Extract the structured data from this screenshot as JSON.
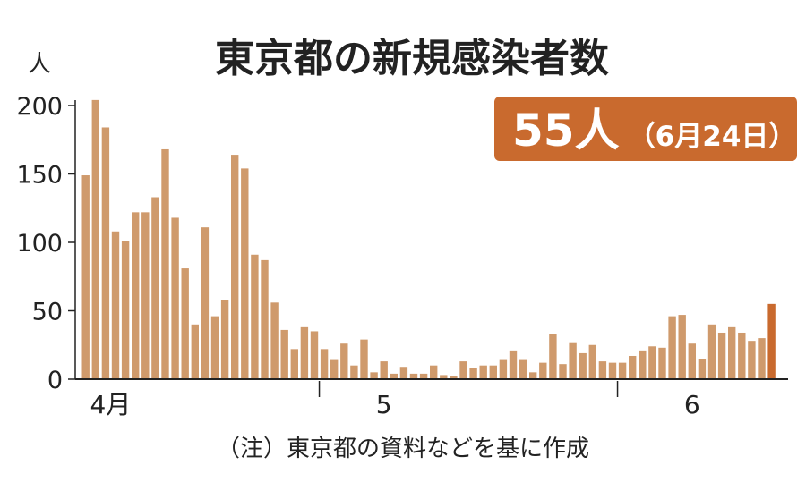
{
  "chart_data": {
    "type": "bar",
    "title": "東京都の新規感染者数",
    "unit_label": "人",
    "ylim": [
      0,
      200
    ],
    "yticks": [
      0,
      50,
      100,
      150,
      200
    ],
    "x_labels": [
      {
        "label": "4月",
        "index": 2.5
      },
      {
        "label": "5",
        "index": 30
      },
      {
        "label": "6",
        "index": 61
      }
    ],
    "month_dividers": [
      24,
      54
    ],
    "values": [
      149,
      204,
      184,
      108,
      101,
      122,
      122,
      133,
      168,
      118,
      81,
      40,
      111,
      46,
      58,
      164,
      154,
      91,
      87,
      56,
      36,
      22,
      38,
      35,
      22,
      14,
      26,
      10,
      29,
      5,
      13,
      4,
      9,
      4,
      4,
      10,
      3,
      2,
      13,
      8,
      10,
      10,
      14,
      21,
      14,
      5,
      12,
      33,
      11,
      27,
      19,
      25,
      13,
      12,
      12,
      17,
      21,
      24,
      23,
      46,
      47,
      26,
      15,
      40,
      34,
      38,
      34,
      28,
      30,
      55
    ],
    "bar_color": "#cf9a6c",
    "highlight_color": "#c96a2e",
    "highlight_index": 69,
    "grid": false
  },
  "badge": {
    "value": "55人",
    "date": "（6月24日）",
    "color": "#c96a2e"
  },
  "note": "（注）東京都の資料などを基に作成"
}
